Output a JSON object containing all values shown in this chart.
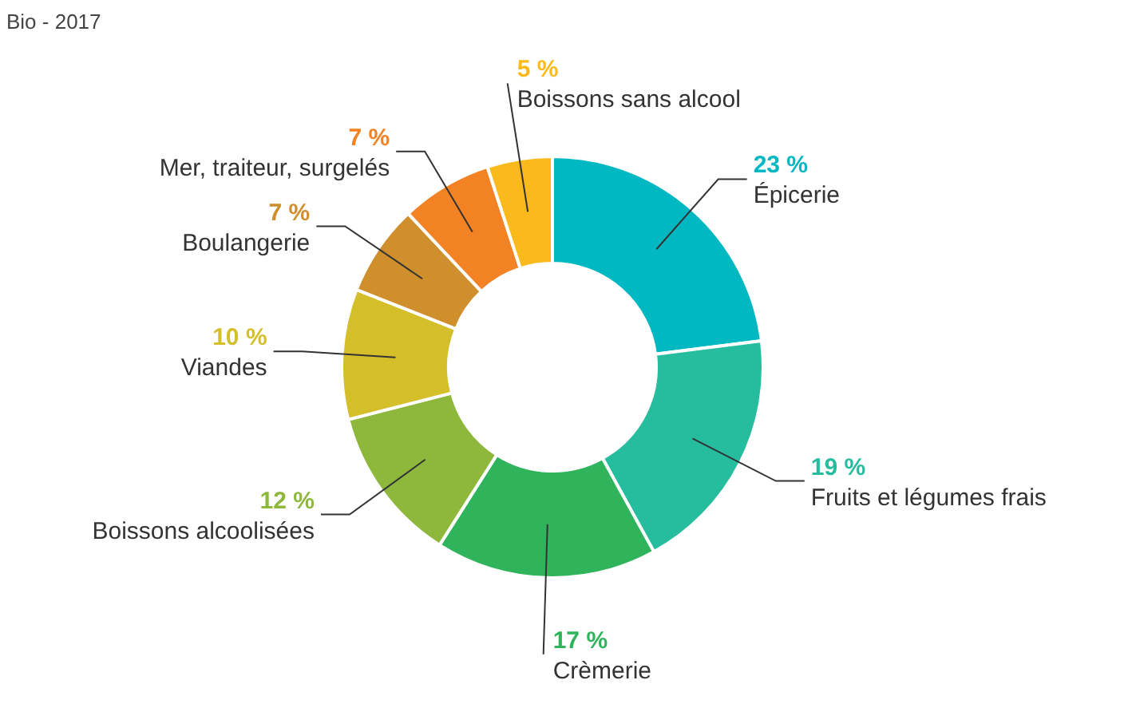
{
  "chart_data": {
    "type": "donut",
    "annotations": [
      "Bio - 2017"
    ],
    "categories": [
      "Épicerie",
      "Fruits et légumes frais",
      "Crèmerie",
      "Boissons alcoolisées",
      "Viandes",
      "Boulangerie",
      "Mer, traiteur, surgelés",
      "Boissons sans alcool"
    ],
    "values": [
      23,
      19,
      17,
      12,
      10,
      7,
      7,
      5
    ],
    "value_labels": [
      "23 %",
      "19 %",
      "17 %",
      "12 %",
      "10 %",
      "7 %",
      "7 %",
      "5 %"
    ],
    "colors": [
      "#00b8c2",
      "#26bd9e",
      "#2fb45c",
      "#8eb83c",
      "#d4bf2a",
      "#cf8f2c",
      "#f28223",
      "#fbba1c"
    ]
  }
}
